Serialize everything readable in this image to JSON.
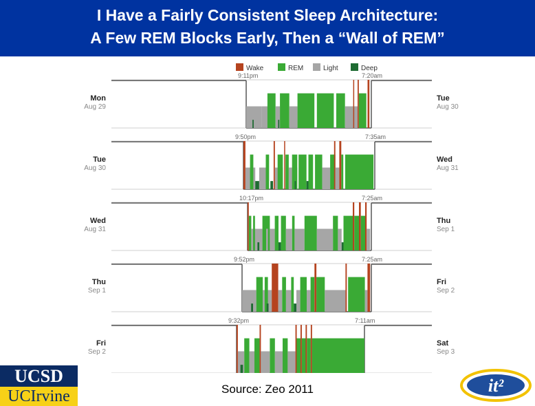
{
  "title": {
    "line1": "I Have a Fairly Consistent Sleep Architecture:",
    "line2": "A Few REM Blocks Early, Then a “Wall of REM”"
  },
  "source": "Source: Zeo 2011",
  "logos": {
    "ucsd": "UCSD",
    "uci": "UCIrvine",
    "it2": "it²"
  },
  "colors": {
    "title_bg": "#0033a0",
    "wake": "#b5431f",
    "rem": "#3aaa35",
    "light": "#a6a6a6",
    "deep": "#1e6b32",
    "axis": "#555555"
  },
  "chart_data": {
    "type": "hypnogram",
    "legend": [
      {
        "name": "Wake",
        "color": "#b5431f"
      },
      {
        "name": "REM",
        "color": "#3aaa35"
      },
      {
        "name": "Light",
        "color": "#a6a6a6"
      },
      {
        "name": "Deep",
        "color": "#1e6b32"
      }
    ],
    "nights": [
      {
        "start_label": "Mon",
        "start_date": "Aug 29",
        "end_label": "Tue",
        "end_date": "Aug 30",
        "bedtime": "9:11pm",
        "waketime": "7:20am",
        "segments": [
          [
            "Light",
            0.0,
            0.125
          ],
          [
            "Deep",
            0.05,
            0.06
          ],
          [
            "Light",
            0.125,
            0.17
          ],
          [
            "REM",
            0.17,
            0.235
          ],
          [
            "Light",
            0.235,
            0.27
          ],
          [
            "Deep",
            0.255,
            0.265
          ],
          [
            "REM",
            0.27,
            0.345
          ],
          [
            "Light",
            0.345,
            0.41
          ],
          [
            "REM",
            0.41,
            0.545
          ],
          [
            "REM",
            0.565,
            0.7
          ],
          [
            "REM",
            0.72,
            0.79
          ],
          [
            "Light",
            0.79,
            0.89
          ],
          [
            "Wake",
            0.855,
            0.862
          ],
          [
            "Wake",
            0.89,
            0.9
          ],
          [
            "REM",
            0.9,
            0.96
          ],
          [
            "Wake",
            0.97,
            0.985
          ]
        ]
      },
      {
        "start_label": "Tue",
        "start_date": "Aug 30",
        "end_label": "Wed",
        "end_date": "Aug 31",
        "bedtime": "9:50pm",
        "waketime": "7:35am",
        "segments": [
          [
            "Wake",
            0.0,
            0.015
          ],
          [
            "Light",
            0.015,
            0.09
          ],
          [
            "REM",
            0.05,
            0.075
          ],
          [
            "Deep",
            0.09,
            0.12
          ],
          [
            "Light",
            0.12,
            0.17
          ],
          [
            "REM",
            0.17,
            0.195
          ],
          [
            "Deep",
            0.205,
            0.225
          ],
          [
            "Wake",
            0.23,
            0.24
          ],
          [
            "Light",
            0.24,
            0.3
          ],
          [
            "REM",
            0.26,
            0.3
          ],
          [
            "Wake",
            0.31,
            0.318
          ],
          [
            "REM",
            0.32,
            0.345
          ],
          [
            "Light",
            0.345,
            0.41
          ],
          [
            "REM",
            0.37,
            0.41
          ],
          [
            "Deep",
            0.39,
            0.4
          ],
          [
            "REM",
            0.42,
            0.48
          ],
          [
            "Deep",
            0.48,
            0.495
          ],
          [
            "REM",
            0.495,
            0.53
          ],
          [
            "REM",
            0.545,
            0.6
          ],
          [
            "Light",
            0.6,
            0.66
          ],
          [
            "REM",
            0.66,
            0.7
          ],
          [
            "Wake",
            0.69,
            0.7
          ],
          [
            "Light",
            0.7,
            0.73
          ],
          [
            "Wake",
            0.73,
            0.745
          ],
          [
            "REM",
            0.745,
            0.76
          ],
          [
            "REM",
            0.775,
            0.99
          ]
        ]
      },
      {
        "start_label": "Wed",
        "start_date": "Aug 31",
        "end_label": "Thu",
        "end_date": "Sep 1",
        "bedtime": "10:17pm",
        "waketime": "7:25am",
        "segments": [
          [
            "Wake",
            0.0,
            0.01
          ],
          [
            "REM",
            0.01,
            0.03
          ],
          [
            "Light",
            0.03,
            0.12
          ],
          [
            "REM",
            0.045,
            0.06
          ],
          [
            "Deep",
            0.08,
            0.095
          ],
          [
            "REM",
            0.12,
            0.18
          ],
          [
            "Light",
            0.15,
            0.165
          ],
          [
            "Light",
            0.18,
            0.22
          ],
          [
            "REM",
            0.22,
            0.25
          ],
          [
            "Deep",
            0.25,
            0.27
          ],
          [
            "REM",
            0.27,
            0.31
          ],
          [
            "Light",
            0.31,
            0.36
          ],
          [
            "REM",
            0.36,
            0.38
          ],
          [
            "Light",
            0.38,
            0.46
          ],
          [
            "REM",
            0.46,
            0.56
          ],
          [
            "Light",
            0.56,
            0.69
          ],
          [
            "REM",
            0.69,
            0.73
          ],
          [
            "Light",
            0.73,
            0.76
          ],
          [
            "Deep",
            0.76,
            0.775
          ],
          [
            "REM",
            0.775,
            0.85
          ],
          [
            "Wake",
            0.85,
            0.862
          ],
          [
            "REM",
            0.862,
            0.9
          ],
          [
            "Wake",
            0.9,
            0.915
          ],
          [
            "REM",
            0.915,
            0.95
          ],
          [
            "Wake",
            0.95,
            0.962
          ],
          [
            "Light",
            0.962,
            0.99
          ]
        ]
      },
      {
        "start_label": "Thu",
        "start_date": "Sep 1",
        "end_label": "Fri",
        "end_date": "Sep 2",
        "bedtime": "9:52pm",
        "waketime": "7:25am",
        "segments": [
          [
            "Light",
            0.0,
            0.11
          ],
          [
            "Deep",
            0.07,
            0.085
          ],
          [
            "REM",
            0.11,
            0.16
          ],
          [
            "Light",
            0.16,
            0.23
          ],
          [
            "REM",
            0.175,
            0.2
          ],
          [
            "Deep",
            0.19,
            0.205
          ],
          [
            "Wake",
            0.23,
            0.28
          ],
          [
            "Light",
            0.28,
            0.31
          ],
          [
            "REM",
            0.31,
            0.34
          ],
          [
            "Light",
            0.34,
            0.38
          ],
          [
            "REM",
            0.38,
            0.4
          ],
          [
            "Deep",
            0.4,
            0.42
          ],
          [
            "Light",
            0.42,
            0.45
          ],
          [
            "REM",
            0.45,
            0.5
          ],
          [
            "Light",
            0.5,
            0.53
          ],
          [
            "REM",
            0.53,
            0.56
          ],
          [
            "Wake",
            0.56,
            0.575
          ],
          [
            "REM",
            0.575,
            0.64
          ],
          [
            "Light",
            0.64,
            0.8
          ],
          [
            "Wake",
            0.8,
            0.81
          ],
          [
            "REM",
            0.82,
            0.95
          ],
          [
            "Light",
            0.95,
            0.97
          ],
          [
            "Wake",
            0.97,
            0.99
          ]
        ]
      },
      {
        "start_label": "Fri",
        "start_date": "Sep 2",
        "end_label": "Sat",
        "end_date": "Sep 3",
        "bedtime": "9:32pm",
        "waketime": "7:11am",
        "segments": [
          [
            "Wake",
            0.0,
            0.01
          ],
          [
            "Light",
            0.01,
            0.06
          ],
          [
            "Deep",
            0.03,
            0.05
          ],
          [
            "REM",
            0.06,
            0.1
          ],
          [
            "Light",
            0.1,
            0.14
          ],
          [
            "REM",
            0.14,
            0.18
          ],
          [
            "Wake",
            0.18,
            0.19
          ],
          [
            "Light",
            0.19,
            0.26
          ],
          [
            "REM",
            0.26,
            0.3
          ],
          [
            "Light",
            0.3,
            0.36
          ],
          [
            "REM",
            0.36,
            0.4
          ],
          [
            "Light",
            0.4,
            0.46
          ],
          [
            "Wake",
            0.46,
            0.47
          ],
          [
            "REM",
            0.47,
            0.5
          ],
          [
            "Wake",
            0.5,
            0.51
          ],
          [
            "REM",
            0.51,
            0.54
          ],
          [
            "Wake",
            0.54,
            0.55
          ],
          [
            "REM",
            0.55,
            0.58
          ],
          [
            "Wake",
            0.58,
            0.59
          ],
          [
            "REM",
            0.59,
            1.0
          ]
        ]
      }
    ]
  }
}
